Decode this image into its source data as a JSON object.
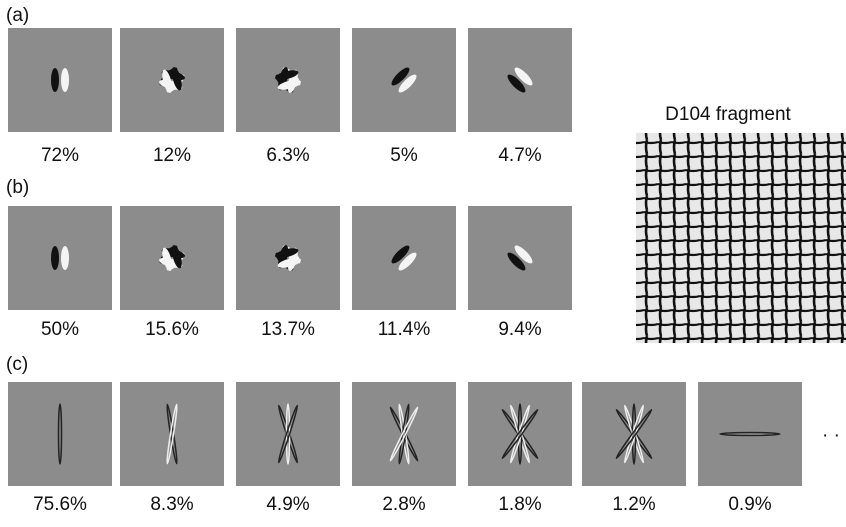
{
  "panels": [
    {
      "label": "(a)",
      "percentages": [
        "72%",
        "12%",
        "6.3%",
        "5%",
        "4.7%"
      ]
    },
    {
      "label": "(b)",
      "percentages": [
        "50%",
        "15.6%",
        "13.7%",
        "11.4%",
        "9.4%"
      ]
    },
    {
      "label": "(c)",
      "percentages": [
        "75.6%",
        "8.3%",
        "4.9%",
        "2.8%",
        "1.8%",
        "1.2%",
        "0.9%"
      ],
      "continuation": "· ·"
    }
  ],
  "texture": {
    "title": "D104 fragment"
  }
}
